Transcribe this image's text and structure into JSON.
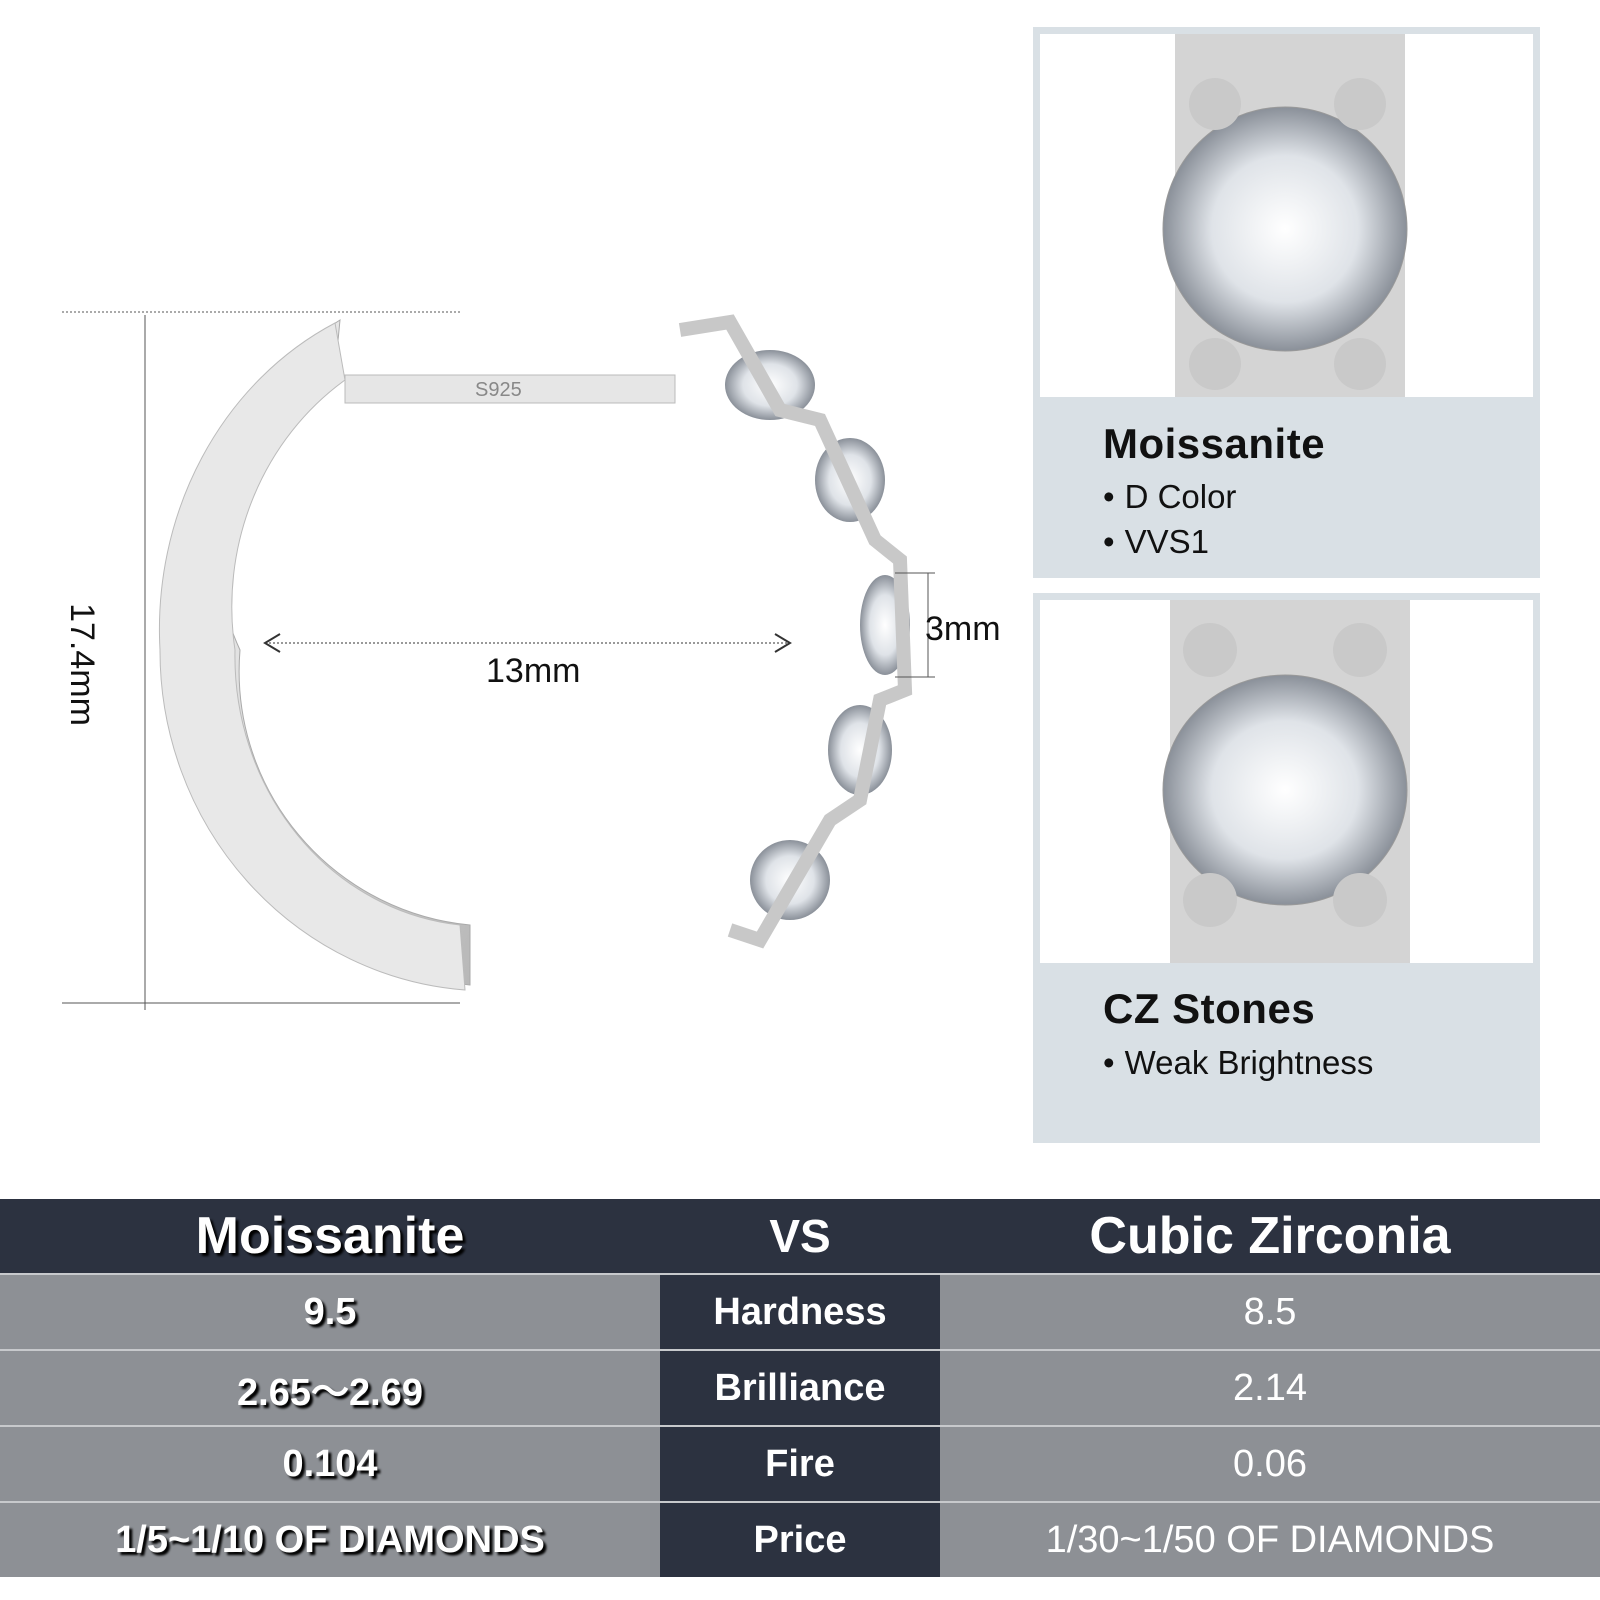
{
  "product": {
    "stamp": "S925",
    "dimensions": {
      "height": "17.4mm",
      "inner_diameter": "13mm",
      "stone_width": "3mm"
    }
  },
  "panels": [
    {
      "title": "Moissanite",
      "bullets": [
        "D Color",
        "VVS1"
      ]
    },
    {
      "title": "CZ Stones",
      "bullets": [
        "Weak Brightness"
      ]
    }
  ],
  "comparison": {
    "header": {
      "left": "Moissanite",
      "middle": "VS",
      "right": "Cubic Zirconia"
    },
    "rows": [
      {
        "left": "9.5",
        "property": "Hardness",
        "right": "8.5"
      },
      {
        "left": "2.65～2.69",
        "property": "Brilliance",
        "right": "2.14"
      },
      {
        "left": "0.104",
        "property": "Fire",
        "right": "0.06"
      },
      {
        "left": "1/5~1/10 OF DIAMONDS",
        "property": "Price",
        "right": "1/30~1/50 OF DIAMONDS"
      }
    ]
  },
  "colors": {
    "header_bg": "#2c3240",
    "row_bg": "#8d9095",
    "panel_bg": "#d9e0e5"
  }
}
